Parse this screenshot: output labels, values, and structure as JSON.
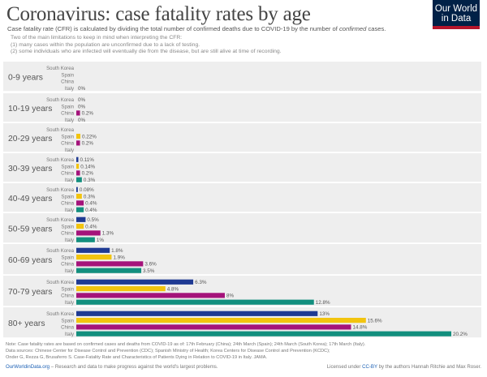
{
  "page": {
    "title": "Coronavirus: case fatality rates by age",
    "subtitle_parts": [
      "Case fatality rate (CFR) is calculated by dividing the total number of confirmed deaths due to COVID-19 by the number of ",
      "confirmed",
      " cases."
    ],
    "notes": [
      "Two of the main limitations to keep in mind when interpreting the CFR:",
      "(1) many cases within the population are unconfirmed due to a lack of testing.",
      "(2) some individuals who are infected will eventually die from the disease, but are still alive at time of recording."
    ],
    "logo": [
      "Our World",
      "in Data"
    ]
  },
  "footer": {
    "note": "Note: Case fatality rates are based on confirmed cases and deaths from COVID-19 as of: 17th February (China); 24th March (Spain); 24th March (South Korea); 17th March (Italy).",
    "sources": "Data sources: Chinese Center for Disease Control and Prevention (CDC); Spanish Ministry of Health; Korea Centers for Disease Control and Prevention (KCDC);",
    "sources2": "Onder G, Rezza G, Brusaferro S. Case-Fatality Rate and Characteristics of Patients Dying in Relation to COVID-19 in Italy. JAMA.",
    "site": "OurWorldinData.org",
    "tagline": " – Research and data to make progress against the world's largest problems.",
    "license_prefix": "Licensed under ",
    "license_link": "CC-BY",
    "license_suffix": " by the authors Hannah Ritchie and Max Roser."
  },
  "colors": {
    "South Korea": "#1f3a93",
    "Spain": "#f2c40f",
    "China": "#a4137a",
    "Italy": "#138f7e",
    "band": "#eeeeee",
    "label": "#555555"
  },
  "chart_data": {
    "type": "bar",
    "orientation": "horizontal",
    "unit": "%",
    "categories": [
      "0-9 years",
      "10-19 years",
      "20-29 years",
      "30-39 years",
      "40-49 years",
      "50-59 years",
      "60-69 years",
      "70-79 years",
      "80+ years"
    ],
    "series": [
      {
        "name": "South Korea",
        "values": [
          null,
          0,
          null,
          0.11,
          0.08,
          0.5,
          1.8,
          6.3,
          13
        ]
      },
      {
        "name": "Spain",
        "values": [
          null,
          0,
          0.22,
          0.14,
          0.3,
          0.4,
          1.9,
          4.8,
          15.6
        ]
      },
      {
        "name": "China",
        "values": [
          null,
          0.2,
          0.2,
          0.2,
          0.4,
          1.3,
          3.6,
          8,
          14.8
        ]
      },
      {
        "name": "Italy",
        "values": [
          0,
          0,
          null,
          0.3,
          0.4,
          1,
          3.5,
          12.8,
          20.2
        ]
      }
    ],
    "value_labels": [
      [
        "",
        "",
        "",
        "0%"
      ],
      [
        "0%",
        "0%",
        "0.2%",
        "0%"
      ],
      [
        "",
        "0.22%",
        "0.2%",
        ""
      ],
      [
        "0.11%",
        "0.14%",
        "0.2%",
        "0.3%"
      ],
      [
        "0.08%",
        "0.3%",
        "0.4%",
        "0.4%"
      ],
      [
        "0.5%",
        "0.4%",
        "1.3%",
        "1%"
      ],
      [
        "1.8%",
        "1.9%",
        "3.6%",
        "3.5%"
      ],
      [
        "6.3%",
        "4.8%",
        "8%",
        "12.8%"
      ],
      [
        "13%",
        "15.6%",
        "14.8%",
        "20.2%"
      ]
    ],
    "xlim": [
      0,
      20.2
    ]
  }
}
